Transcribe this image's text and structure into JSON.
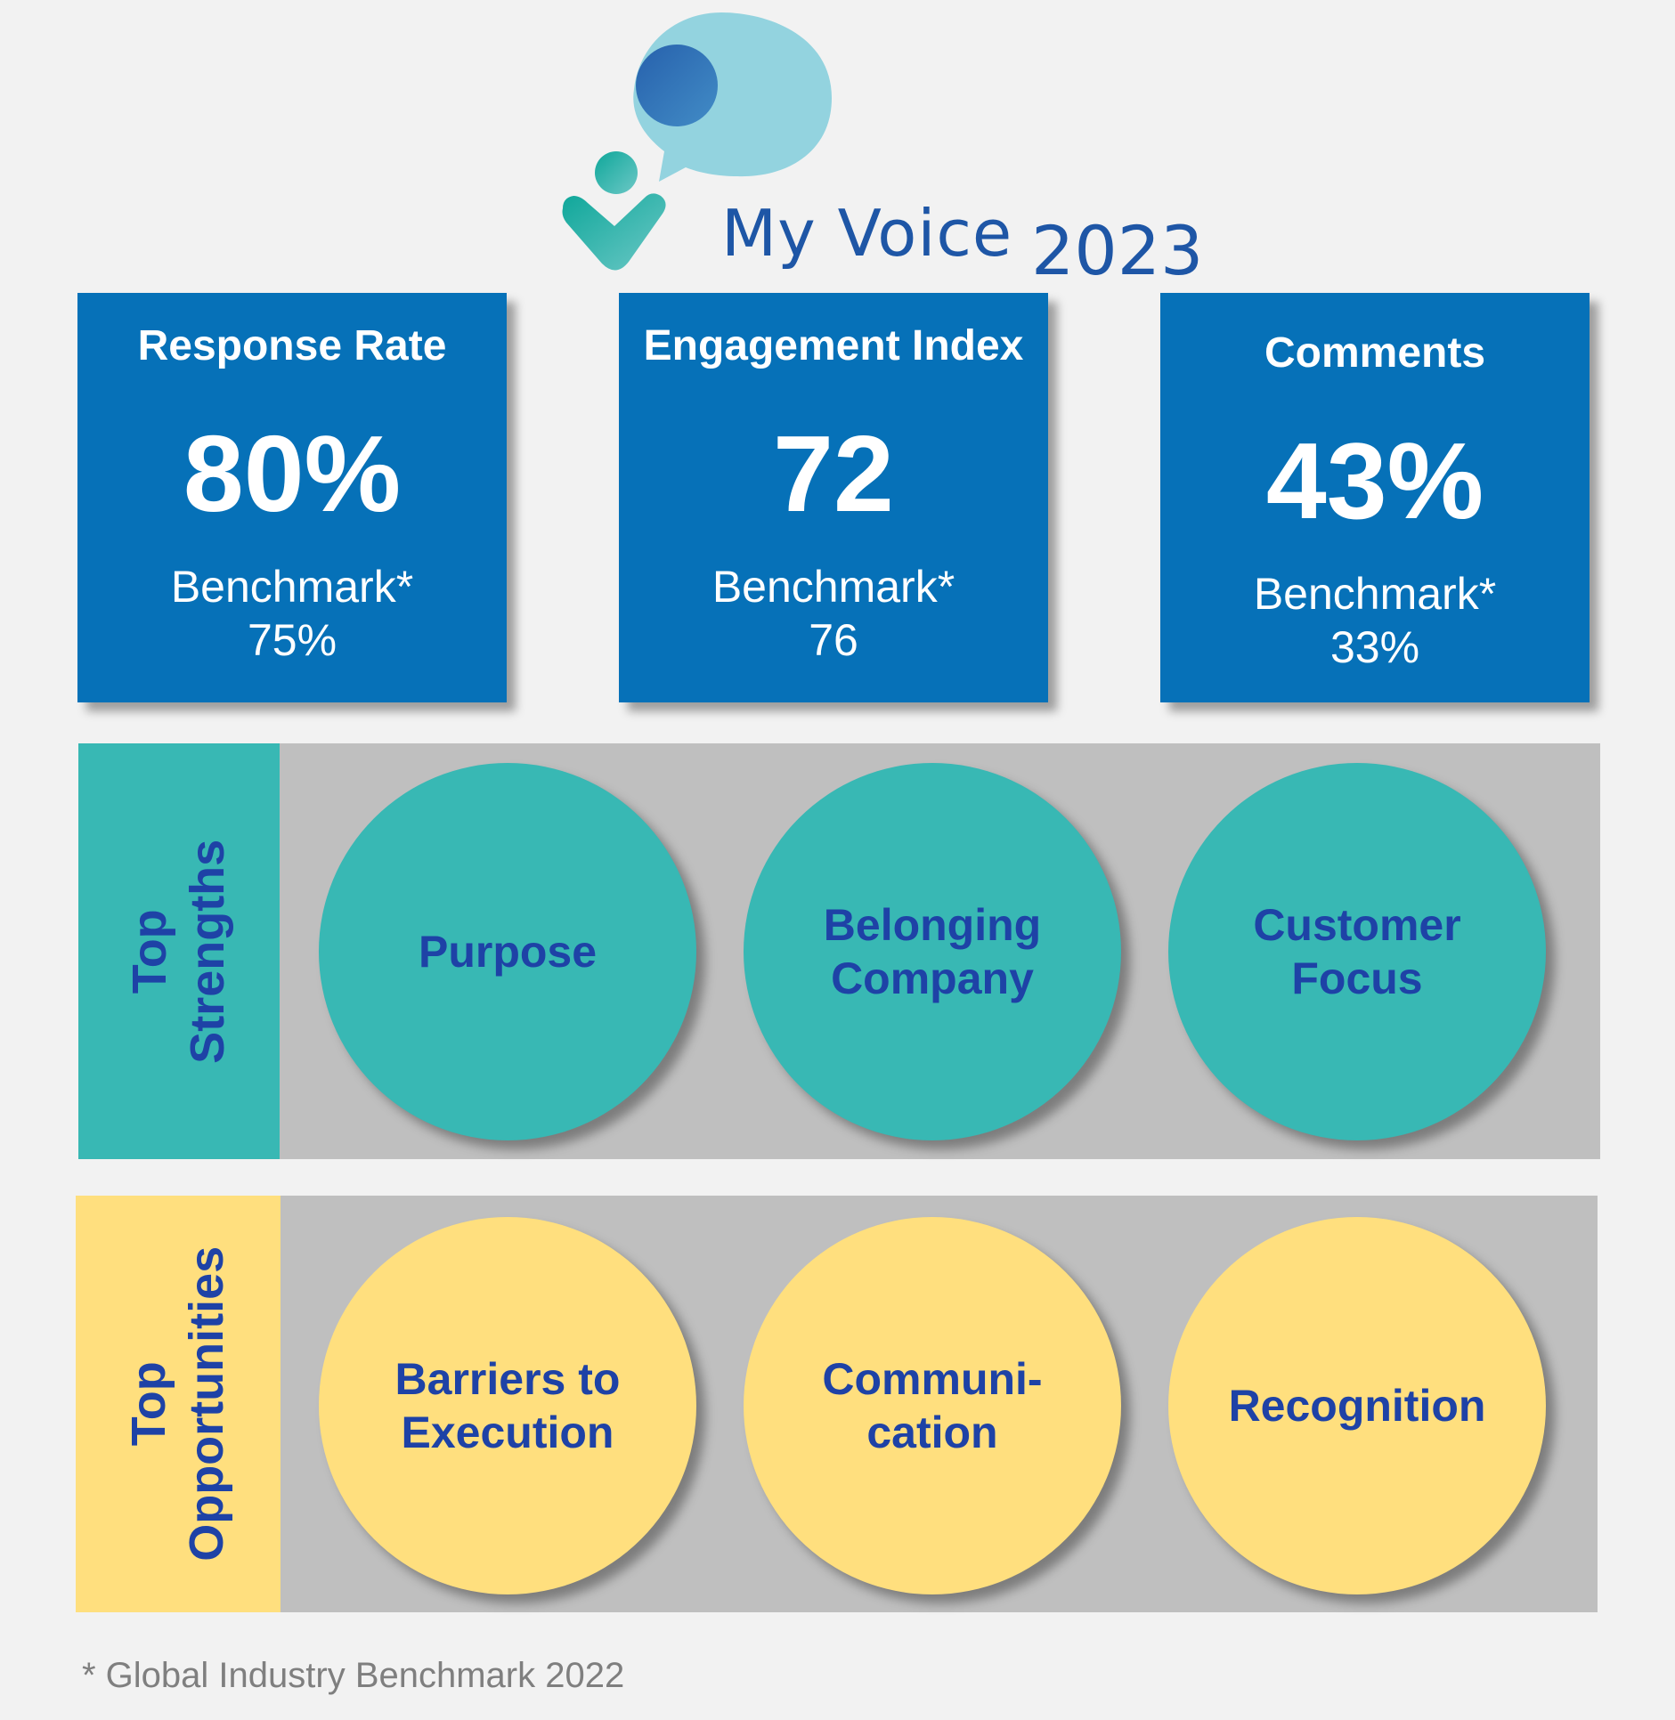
{
  "brand": {
    "name": "My Voice",
    "year": "2023",
    "colors": {
      "dark_blue": "#1e56a6",
      "light_blue": "#93d3df",
      "teal": "#1fada6"
    }
  },
  "kpis": [
    {
      "title": "Response Rate",
      "value": "80%",
      "benchmark_label": "Benchmark*",
      "benchmark_value": "75%"
    },
    {
      "title": "Engagement Index",
      "value": "72",
      "benchmark_label": "Benchmark*",
      "benchmark_value": "76"
    },
    {
      "title": "Comments",
      "value": "43%",
      "benchmark_label": "Benchmark*",
      "benchmark_value": "33%"
    }
  ],
  "strengths": {
    "label": "Top\nStrengths",
    "color": "#38b8b4",
    "items": [
      "Purpose",
      "Belonging\nCompany",
      "Customer\nFocus"
    ]
  },
  "opportunities": {
    "label": "Top\nOpportunities",
    "color": "#ffdf7e",
    "items": [
      "Barriers to\nExecution",
      "Communi-\ncation",
      "Recognition"
    ]
  },
  "footnote": "* Global Industry Benchmark 2022",
  "colors": {
    "card_blue": "#0671b8",
    "band_gray": "#bfbfbf",
    "text_blue": "#1e42a6"
  }
}
